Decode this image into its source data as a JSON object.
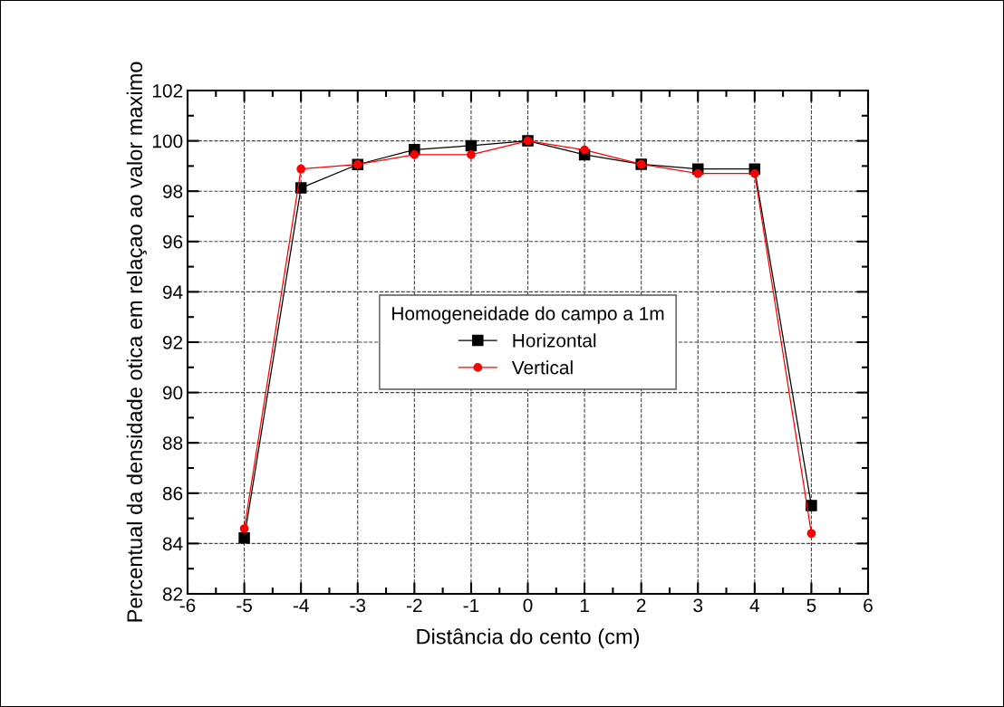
{
  "chart_data": {
    "type": "line",
    "xlabel": "Distância do cento (cm)",
    "ylabel": "Percentual da densidade otica em relaçao ao valor maximo",
    "legend_title": "Homogeneidade do campo a 1m",
    "x": [
      -5,
      -4,
      -3,
      -2,
      -1,
      0,
      1,
      2,
      3,
      4,
      5
    ],
    "series": [
      {
        "name": "Horizontal",
        "color": "#000000",
        "marker": "square",
        "values": [
          84.22,
          98.13,
          99.06,
          99.65,
          99.81,
          100,
          99.45,
          99.07,
          98.88,
          98.88,
          85.51
        ]
      },
      {
        "name": "Vertical",
        "color": "#ff0000",
        "marker": "circle",
        "values": [
          84.59,
          98.88,
          99.06,
          99.45,
          99.45,
          100,
          99.64,
          99.07,
          98.7,
          98.7,
          84.4
        ]
      }
    ],
    "xlim": [
      -6,
      6
    ],
    "xticks": [
      -6,
      -5,
      -4,
      -3,
      -2,
      -1,
      0,
      1,
      2,
      3,
      4,
      5,
      6
    ],
    "ylim": [
      82,
      102
    ],
    "yticks": [
      82,
      84,
      86,
      88,
      90,
      92,
      94,
      96,
      98,
      100,
      102
    ],
    "grid": true,
    "legend": "center",
    "line_style": "solid"
  }
}
